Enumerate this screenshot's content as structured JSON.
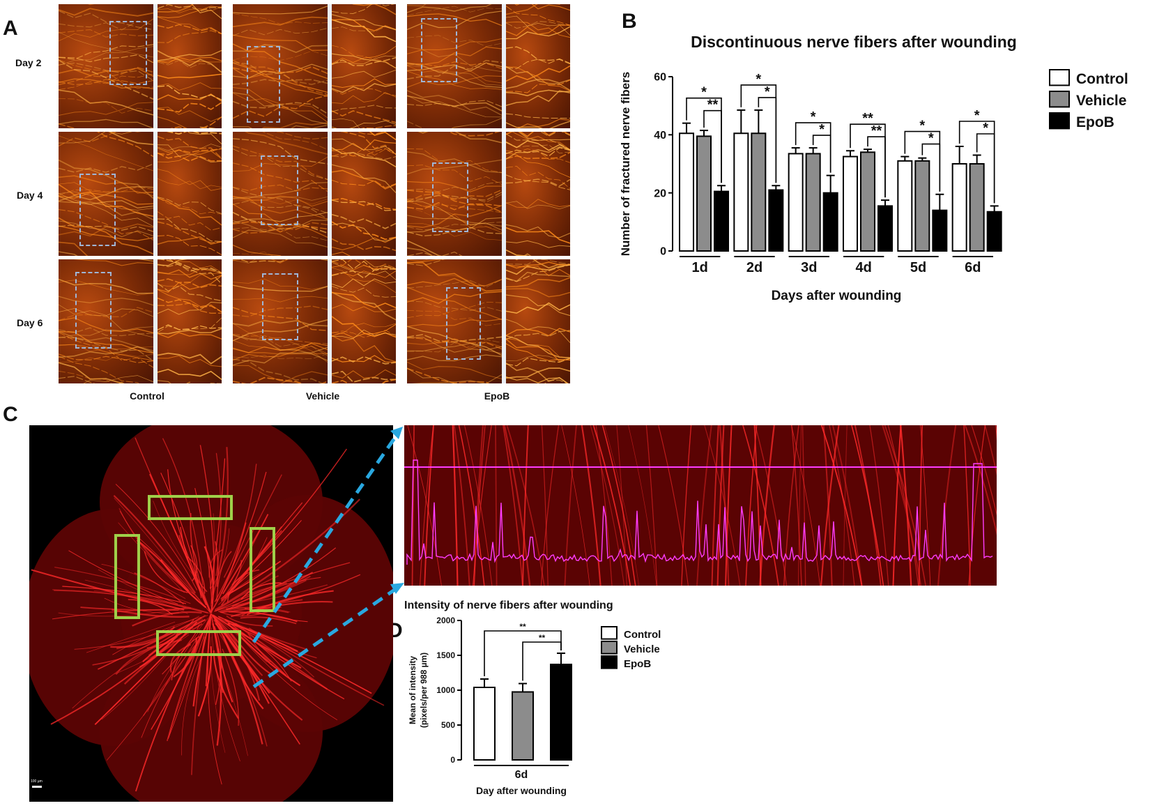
{
  "panel_labels": {
    "a": "A",
    "b": "B",
    "c": "C",
    "d": "D"
  },
  "panel_a": {
    "row_labels": [
      "Day  2",
      "Day 4",
      "Day 6"
    ],
    "col_labels": [
      "Control",
      "Vehicle",
      "EpoB"
    ]
  },
  "colors": {
    "control": "#ffffff",
    "vehicle": "#8c8c8c",
    "epob": "#000000",
    "nerve_red": "#ff2a2a",
    "box_green": "#9fd04a",
    "arrow_blue": "#29a8e0",
    "profile_magenta": "#ff3cff"
  },
  "chart_data": [
    {
      "id": "B",
      "type": "bar",
      "title": "Discontinuous nerve fibers after wounding",
      "xlabel": "Days after wounding",
      "ylabel": "Number of fractured nerve fibers",
      "ylim": [
        0,
        60
      ],
      "yticks": [
        0,
        20,
        40,
        60
      ],
      "categories": [
        "1d",
        "2d",
        "3d",
        "4d",
        "5d",
        "6d"
      ],
      "legend_position": "top-right",
      "series": [
        {
          "name": "Control",
          "values": [
            40.5,
            40.5,
            33.5,
            32.5,
            31,
            30
          ],
          "errors": [
            3.5,
            8,
            2,
            2,
            1.5,
            6
          ]
        },
        {
          "name": "Vehicle",
          "values": [
            39.5,
            40.5,
            33.5,
            34,
            31,
            30
          ],
          "errors": [
            2,
            8,
            2,
            1,
            1,
            3
          ]
        },
        {
          "name": "EpoB",
          "values": [
            20.5,
            21,
            20,
            15.5,
            14,
            13.5
          ],
          "errors": [
            2,
            1.5,
            6,
            2,
            5.5,
            2
          ]
        }
      ],
      "significance": [
        {
          "category": "1d",
          "outer": "*",
          "inner": "**"
        },
        {
          "category": "2d",
          "outer": "*",
          "inner": "*"
        },
        {
          "category": "3d",
          "outer": "*",
          "inner": "*"
        },
        {
          "category": "4d",
          "outer": "**",
          "inner": "**"
        },
        {
          "category": "5d",
          "outer": "*",
          "inner": "*"
        },
        {
          "category": "6d",
          "outer": "*",
          "inner": "*"
        }
      ]
    },
    {
      "id": "D",
      "type": "bar",
      "title": "Intensity of nerve fibers after wounding",
      "xlabel": "Day after wounding",
      "ylabel_line1": "Mean of intensity",
      "ylabel_line2": "(pixels/per 988 µm)",
      "ylim": [
        0,
        2000
      ],
      "yticks": [
        0,
        500,
        1000,
        1500,
        2000
      ],
      "categories": [
        "6d"
      ],
      "legend_position": "top-right",
      "series": [
        {
          "name": "Control",
          "values": [
            1040
          ],
          "errors": [
            120
          ]
        },
        {
          "name": "Vehicle",
          "values": [
            975
          ],
          "errors": [
            120
          ]
        },
        {
          "name": "EpoB",
          "values": [
            1370
          ],
          "errors": [
            160
          ]
        }
      ],
      "significance": [
        {
          "outer": "**",
          "inner": "**"
        }
      ]
    }
  ],
  "panel_c": {
    "scale_bar_label": "100 µm"
  }
}
